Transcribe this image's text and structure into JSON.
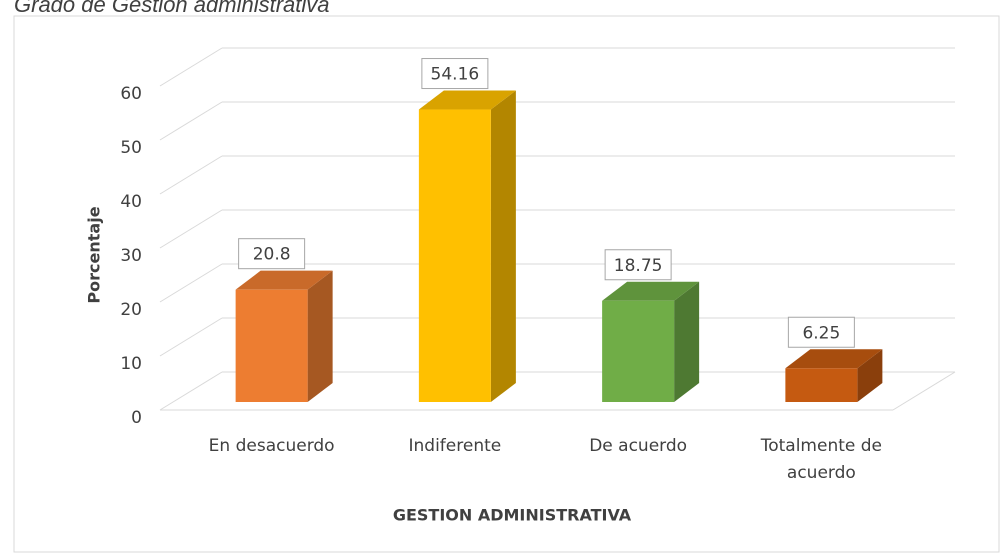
{
  "chart_data": {
    "type": "bar3d",
    "title": "Grado de Gestion administrativa",
    "categories": [
      "En desacuerdo",
      "Indiferente",
      "De acuerdo",
      "Totalmente de acuerdo"
    ],
    "values": [
      20.8,
      54.16,
      18.75,
      6.25
    ],
    "colors": [
      "#ed7d31",
      "#ffc000",
      "#70ad47",
      "#c55a11"
    ],
    "ylim": [
      0,
      60
    ],
    "yticks": [
      0,
      10,
      20,
      30,
      40,
      50,
      60
    ],
    "grid": true,
    "ylabel": "Porcentaje",
    "xlabel": "GESTION ADMINISTRATIVA"
  }
}
